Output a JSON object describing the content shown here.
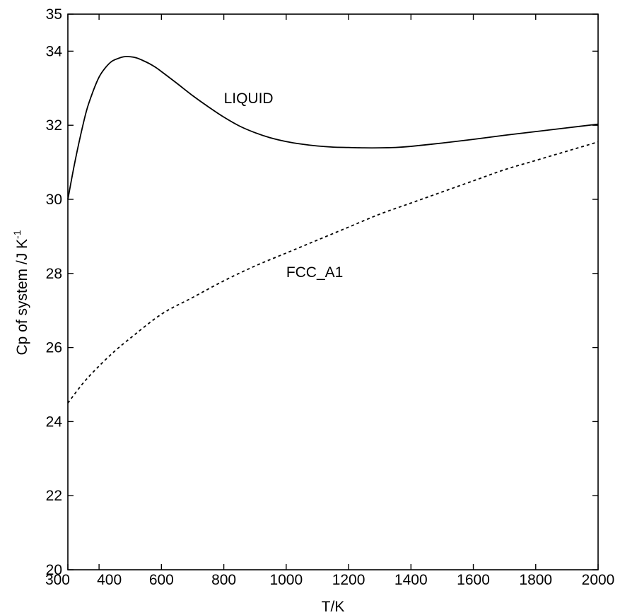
{
  "chart_data": {
    "type": "line",
    "title": "",
    "xlabel": "T/K",
    "ylabel": "Cp of system /J K",
    "ylabel_superscript": "-1",
    "xlim": [
      300,
      2000
    ],
    "ylim": [
      20,
      35
    ],
    "xticks": [
      300,
      400,
      600,
      800,
      1000,
      1200,
      1400,
      1600,
      1800,
      2000
    ],
    "xtick_labels": [
      "300",
      "400",
      "600",
      "800",
      "1000",
      "1200",
      "1400",
      "1600",
      "1800",
      "2000"
    ],
    "yticks": [
      20,
      22,
      24,
      26,
      28,
      30,
      32,
      34,
      35
    ],
    "ytick_labels": [
      "20",
      "22",
      "24",
      "26",
      "28",
      "30",
      "32",
      "34",
      "35"
    ],
    "grid": false,
    "series": [
      {
        "name": "LIQUID",
        "line_style": "solid",
        "color": "#000000",
        "x": [
          300,
          320,
          340,
          360,
          380,
          400,
          420,
          440,
          460,
          480,
          500,
          520,
          540,
          560,
          580,
          600,
          650,
          700,
          750,
          800,
          850,
          900,
          950,
          1000,
          1050,
          1100,
          1150,
          1200,
          1250,
          1300,
          1350,
          1400,
          1500,
          1600,
          1700,
          1800,
          1900,
          2000
        ],
        "y": [
          30.0,
          30.9,
          31.7,
          32.4,
          32.9,
          33.3,
          33.55,
          33.72,
          33.8,
          33.85,
          33.85,
          33.82,
          33.75,
          33.67,
          33.57,
          33.45,
          33.13,
          32.8,
          32.5,
          32.22,
          31.98,
          31.8,
          31.66,
          31.56,
          31.49,
          31.44,
          31.41,
          31.4,
          31.39,
          31.39,
          31.4,
          31.43,
          31.52,
          31.62,
          31.73,
          31.83,
          31.93,
          32.03
        ]
      },
      {
        "name": "FCC_A1",
        "line_style": "dashed",
        "color": "#000000",
        "x": [
          300,
          350,
          400,
          450,
          500,
          600,
          700,
          800,
          900,
          1000,
          1100,
          1200,
          1300,
          1400,
          1500,
          1600,
          1700,
          1800,
          1900,
          2000
        ],
        "y": [
          24.5,
          25.05,
          25.5,
          25.9,
          26.25,
          26.9,
          27.35,
          27.8,
          28.2,
          28.55,
          28.9,
          29.25,
          29.6,
          29.9,
          30.2,
          30.5,
          30.8,
          31.05,
          31.3,
          31.55
        ]
      }
    ],
    "annotations": [
      {
        "text": "LIQUID",
        "x": 800,
        "y": 32.6
      },
      {
        "text": "FCC_A1",
        "x": 1000,
        "y": 27.9
      }
    ]
  }
}
